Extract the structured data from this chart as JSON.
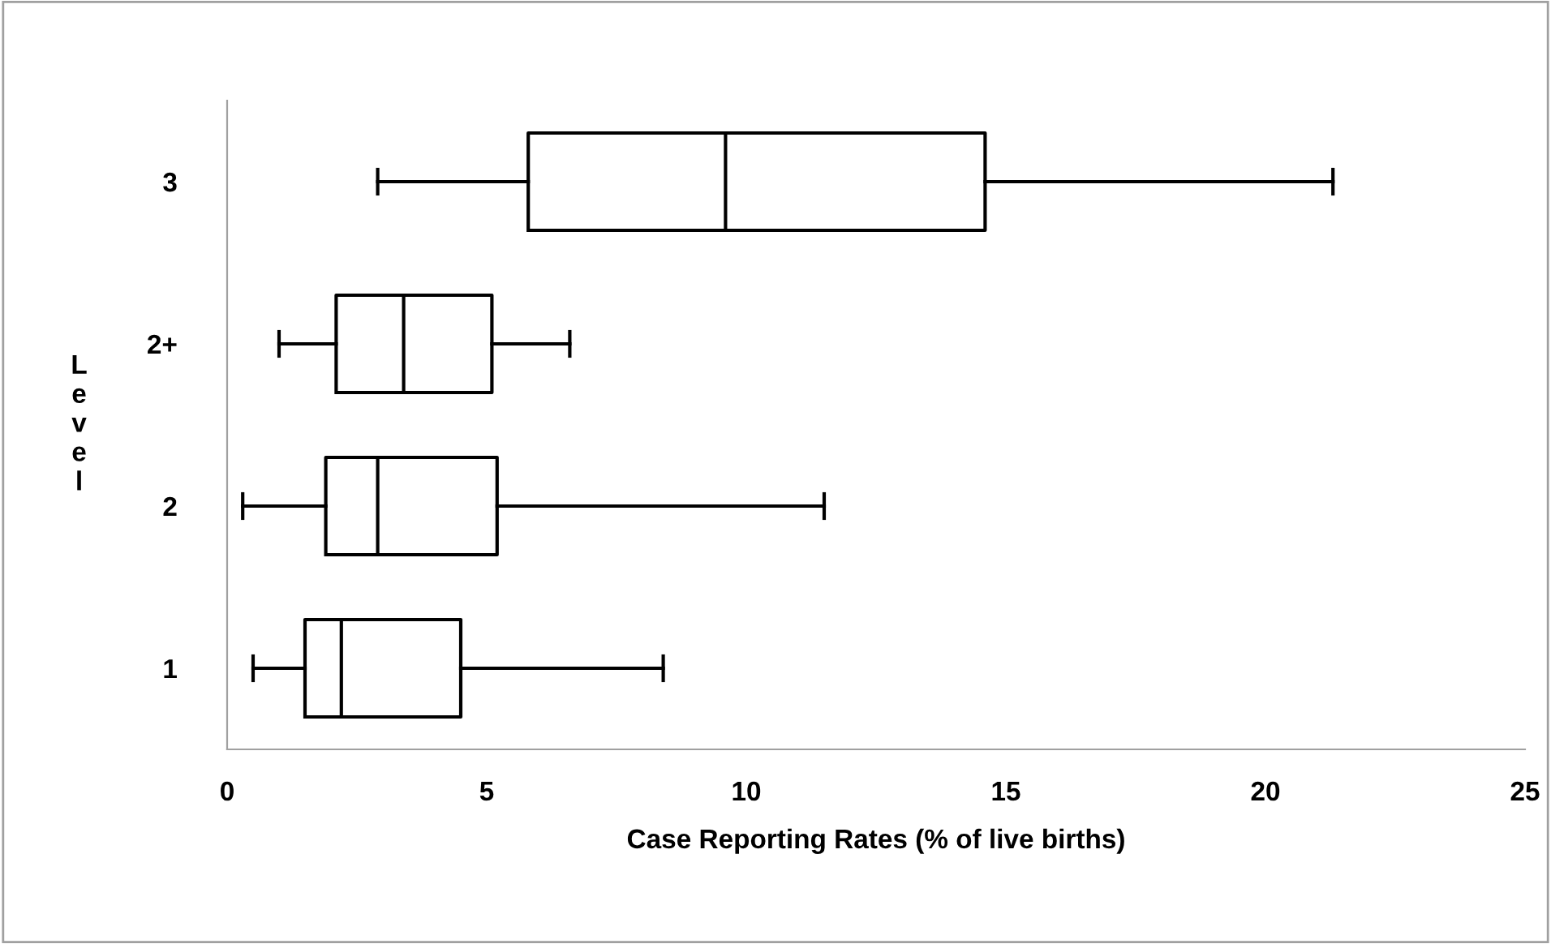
{
  "chart_data": {
    "type": "box",
    "orientation": "horizontal",
    "xlabel": "Case Reporting Rates (% of live births)",
    "ylabel": "Level",
    "categories": [
      "3",
      "2+",
      "2",
      "1"
    ],
    "boxes": [
      {
        "low": 2.9,
        "q1": 5.8,
        "median": 9.6,
        "q3": 14.6,
        "high": 21.3
      },
      {
        "low": 1.0,
        "q1": 2.1,
        "median": 3.4,
        "q3": 5.1,
        "high": 6.6
      },
      {
        "low": 0.3,
        "q1": 1.9,
        "median": 2.9,
        "q3": 5.2,
        "high": 11.5
      },
      {
        "low": 0.5,
        "q1": 1.5,
        "median": 2.2,
        "q3": 4.5,
        "high": 8.4
      }
    ],
    "xlim": [
      0,
      25
    ],
    "xticks": [
      0,
      5,
      10,
      15,
      20,
      25
    ],
    "grid": false,
    "legend": false
  }
}
